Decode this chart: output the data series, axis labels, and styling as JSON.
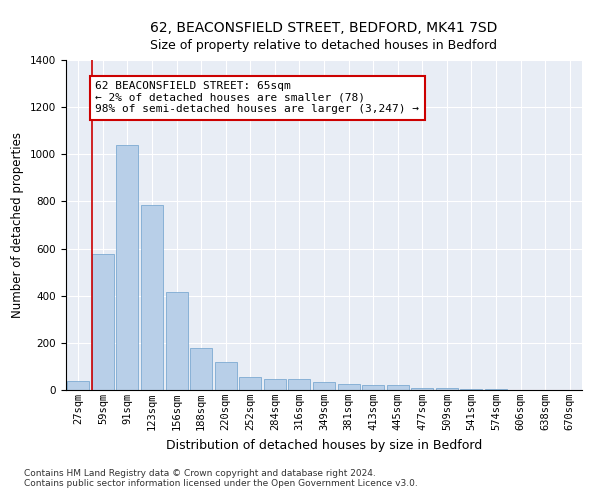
{
  "title": "62, BEACONSFIELD STREET, BEDFORD, MK41 7SD",
  "subtitle": "Size of property relative to detached houses in Bedford",
  "xlabel": "Distribution of detached houses by size in Bedford",
  "ylabel": "Number of detached properties",
  "categories": [
    "27sqm",
    "59sqm",
    "91sqm",
    "123sqm",
    "156sqm",
    "188sqm",
    "220sqm",
    "252sqm",
    "284sqm",
    "316sqm",
    "349sqm",
    "381sqm",
    "413sqm",
    "445sqm",
    "477sqm",
    "509sqm",
    "541sqm",
    "574sqm",
    "606sqm",
    "638sqm",
    "670sqm"
  ],
  "values": [
    40,
    575,
    1040,
    785,
    415,
    180,
    120,
    55,
    45,
    45,
    35,
    25,
    20,
    20,
    10,
    8,
    5,
    3,
    2,
    1,
    1
  ],
  "bar_color": "#b8cfe8",
  "bar_edge_color": "#6da0cc",
  "vline_color": "#cc0000",
  "annotation_text": "62 BEACONSFIELD STREET: 65sqm\n← 2% of detached houses are smaller (78)\n98% of semi-detached houses are larger (3,247) →",
  "annotation_box_color": "#cc0000",
  "ylim": [
    0,
    1400
  ],
  "yticks": [
    0,
    200,
    400,
    600,
    800,
    1000,
    1200,
    1400
  ],
  "footnote1": "Contains HM Land Registry data © Crown copyright and database right 2024.",
  "footnote2": "Contains public sector information licensed under the Open Government Licence v3.0.",
  "bg_color": "#e8edf5",
  "title_fontsize": 10,
  "subtitle_fontsize": 9,
  "axis_label_fontsize": 8.5,
  "tick_fontsize": 7.5,
  "annotation_fontsize": 8,
  "footnote_fontsize": 6.5
}
